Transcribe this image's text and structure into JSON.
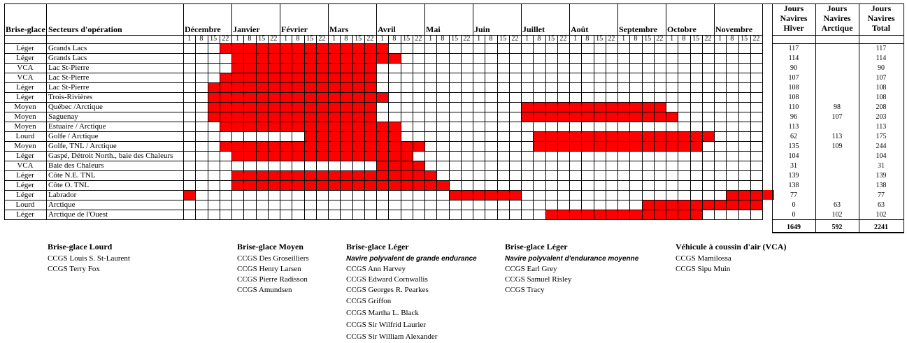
{
  "colors": {
    "fill": "#ff0000",
    "line": "#000000"
  },
  "header": {
    "type_label": "Brise-glace",
    "sector_label": "Secteurs d'opération",
    "col_winter": [
      "Jours",
      "Navires",
      "Hiver"
    ],
    "col_arctic": [
      "Jours",
      "Navires",
      "Arctique"
    ],
    "col_total": [
      "Jours",
      "Navires",
      "Total"
    ]
  },
  "months": [
    "Décembre",
    "Janvier",
    "Février",
    "Mars",
    "Avril",
    "Mai",
    "Juin",
    "Juillet",
    "Août",
    "Septembre",
    "Octobre",
    "Novembre"
  ],
  "week_labels": [
    "1",
    "8",
    "15",
    "22"
  ],
  "rows": [
    {
      "type": "Léger",
      "sector": "Grands Lacs",
      "winter": "117",
      "arctic": "",
      "total": "117",
      "bars": [
        [
          3,
          17
        ]
      ]
    },
    {
      "type": "Léger",
      "sector": "Grands Lacs",
      "winter": "114",
      "arctic": "",
      "total": "114",
      "bars": [
        [
          4,
          18
        ]
      ]
    },
    {
      "type": "VCA",
      "sector": "Lac St-Pierre",
      "winter": "90",
      "arctic": "",
      "total": "90",
      "bars": [
        [
          4,
          16
        ]
      ]
    },
    {
      "type": "VCA",
      "sector": "Lac St-Pierre",
      "winter": "107",
      "arctic": "",
      "total": "107",
      "bars": [
        [
          3,
          16
        ]
      ]
    },
    {
      "type": "Léger",
      "sector": "Lac St-Pierre",
      "winter": "108",
      "arctic": "",
      "total": "108",
      "bars": [
        [
          2,
          16
        ]
      ]
    },
    {
      "type": "Léger",
      "sector": "Trois-Rivières",
      "winter": "108",
      "arctic": "",
      "total": "108",
      "bars": [
        [
          2,
          16
        ],
        [
          16,
          17
        ]
      ]
    },
    {
      "type": "Moyen",
      "sector": "Québec /Arctique",
      "winter": "110",
      "arctic": "98",
      "total": "208",
      "bars": [
        [
          2,
          16
        ],
        [
          28,
          40
        ]
      ]
    },
    {
      "type": "Moyen",
      "sector": "Saguenay",
      "winter": "96",
      "arctic": "107",
      "total": "203",
      "bars": [
        [
          2,
          16
        ],
        [
          28,
          41
        ]
      ]
    },
    {
      "type": "Moyen",
      "sector": "Estuaire / Arctique",
      "winter": "113",
      "arctic": "",
      "total": "113",
      "bars": [
        [
          3,
          18
        ]
      ]
    },
    {
      "type": "Lourd",
      "sector": "Golfe / Arctique",
      "winter": "62",
      "arctic": "113",
      "total": "175",
      "bars": [
        [
          10,
          18
        ],
        [
          29,
          44
        ]
      ]
    },
    {
      "type": "Moyen",
      "sector": "Golfe, TNL / Arctique",
      "winter": "135",
      "arctic": "109",
      "total": "244",
      "bars": [
        [
          3,
          20
        ],
        [
          29,
          43
        ]
      ]
    },
    {
      "type": "Léger",
      "sector": "Gaspé, Détroit North., baie des Chaleurs",
      "winter": "104",
      "arctic": "",
      "total": "104",
      "bars": [
        [
          4,
          19
        ]
      ]
    },
    {
      "type": "VCA",
      "sector": "Baie des Chaleurs",
      "winter": "31",
      "arctic": "",
      "total": "31",
      "bars": [
        [
          16,
          20
        ]
      ]
    },
    {
      "type": "Léger",
      "sector": "Côte N.E. TNL",
      "winter": "139",
      "arctic": "",
      "total": "139",
      "bars": [
        [
          4,
          21
        ]
      ]
    },
    {
      "type": "Léger",
      "sector": "Côte O. TNL",
      "winter": "138",
      "arctic": "",
      "total": "138",
      "bars": [
        [
          4,
          22
        ]
      ]
    },
    {
      "type": "Léger",
      "sector": "Labrador",
      "winter": "77",
      "arctic": "",
      "total": "77",
      "bars": [
        [
          0,
          1
        ],
        [
          22,
          28
        ],
        [
          45,
          49
        ]
      ]
    },
    {
      "type": "Lourd",
      "sector": "Arctique",
      "winter": "0",
      "arctic": "63",
      "total": "63",
      "bars": [
        [
          38,
          45
        ],
        [
          45,
          48
        ]
      ]
    },
    {
      "type": "Léger",
      "sector": "Arctique de l'Ouest",
      "winter": "0",
      "arctic": "102",
      "total": "102",
      "bars": [
        [
          30,
          43
        ]
      ]
    }
  ],
  "totals": {
    "winter": "1649",
    "arctic": "592",
    "total": "2241"
  },
  "legend": [
    {
      "title": "Brise-glace Lourd",
      "subtitle": "",
      "items": [
        "CCGS Louis S. St-Laurent",
        "CCGS Terry Fox"
      ]
    },
    {
      "title": "Brise-glace Moyen",
      "subtitle": "",
      "items": [
        "CCGS Des Groseilliers",
        "CCGS Henry Larsen",
        "CCGS Pierre Radisson",
        "CCGS Amundsen"
      ]
    },
    {
      "title": "Brise-glace Léger",
      "subtitle": "Navire polyvalent de grande endurance",
      "items": [
        "CCGS Ann Harvey",
        "CCGS Edward Cornwallis",
        "CCGS Georges R. Pearkes",
        "CCGS Griffon",
        "CCGS Martha L. Black",
        "CCGS Sir Wilfrid Laurier",
        "CCGS Sir William Alexander"
      ]
    },
    {
      "title": "Brise-glace Léger",
      "subtitle": "Navire polyvalent d'endurance moyenne",
      "items": [
        "CCGS Earl Grey",
        "CCGS Samuel Risley",
        "CCGS Tracy"
      ]
    },
    {
      "title": "Véhicule à coussin d'air (VCA)",
      "subtitle": "",
      "items": [
        "CCGS Mamilossa",
        "CCGS Sipu Muin"
      ]
    }
  ]
}
